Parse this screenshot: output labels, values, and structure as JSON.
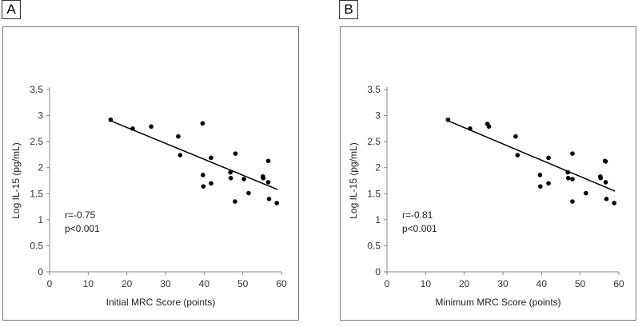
{
  "chart_data": [
    {
      "panel": "A",
      "type": "scatter",
      "xlabel": "Initial MRC Score (points)",
      "ylabel": "Log IL-15 (pg/mL)",
      "xlim": [
        0,
        60
      ],
      "ylim": [
        0,
        3.5
      ],
      "xticks": [
        "0",
        "10",
        "20",
        "30",
        "40",
        "50",
        "60"
      ],
      "yticks": [
        "0",
        "0.5",
        "1",
        "1.5",
        "2",
        "2.5",
        "3",
        "3.5"
      ],
      "annotations": [
        "r=-0.75",
        "p<0.001"
      ],
      "points": [
        [
          15.8,
          2.92
        ],
        [
          21.5,
          2.75
        ],
        [
          26.3,
          2.79
        ],
        [
          33.3,
          2.6
        ],
        [
          33.8,
          2.24
        ],
        [
          39.6,
          2.85
        ],
        [
          39.7,
          1.86
        ],
        [
          39.8,
          1.64
        ],
        [
          41.8,
          2.19
        ],
        [
          41.8,
          1.7
        ],
        [
          46.8,
          1.91
        ],
        [
          46.9,
          1.8
        ],
        [
          48.1,
          2.27
        ],
        [
          48.0,
          1.35
        ],
        [
          50.3,
          1.78
        ],
        [
          51.5,
          1.51
        ],
        [
          55.2,
          1.83
        ],
        [
          55.3,
          1.8
        ],
        [
          56.6,
          2.13
        ],
        [
          56.6,
          1.72
        ],
        [
          56.8,
          1.4
        ],
        [
          58.8,
          1.32
        ]
      ],
      "trendline": {
        "x": [
          15.8,
          59.0
        ],
        "y": [
          2.9,
          1.58
        ]
      }
    },
    {
      "panel": "B",
      "type": "scatter",
      "xlabel": "Minimum MRC Score (points)",
      "ylabel": "Log IL-15 (pg/mL)",
      "xlim": [
        0,
        60
      ],
      "ylim": [
        0,
        3.5
      ],
      "xticks": [
        "0",
        "10",
        "20",
        "30",
        "40",
        "50",
        "60"
      ],
      "yticks": [
        "0",
        "0.5",
        "1",
        "1.5",
        "2",
        "2.5",
        "3",
        "3.5"
      ],
      "annotations": [
        "r=-0.81",
        "p<0.001"
      ],
      "points": [
        [
          15.8,
          2.92
        ],
        [
          21.5,
          2.75
        ],
        [
          26.0,
          2.84
        ],
        [
          26.4,
          2.79
        ],
        [
          33.3,
          2.6
        ],
        [
          33.8,
          2.24
        ],
        [
          39.6,
          1.86
        ],
        [
          39.7,
          1.64
        ],
        [
          41.8,
          2.19
        ],
        [
          41.8,
          1.7
        ],
        [
          46.8,
          1.91
        ],
        [
          46.9,
          1.8
        ],
        [
          48.0,
          2.27
        ],
        [
          48.0,
          1.78
        ],
        [
          48.0,
          1.35
        ],
        [
          51.5,
          1.51
        ],
        [
          55.2,
          1.83
        ],
        [
          55.3,
          1.8
        ],
        [
          56.4,
          2.13
        ],
        [
          56.6,
          2.12
        ],
        [
          56.6,
          1.72
        ],
        [
          56.8,
          1.4
        ],
        [
          58.8,
          1.32
        ]
      ],
      "trendline": {
        "x": [
          15.8,
          59.0
        ],
        "y": [
          2.9,
          1.55
        ]
      }
    }
  ],
  "panels": [
    {
      "label": "A"
    },
    {
      "label": "B"
    }
  ]
}
